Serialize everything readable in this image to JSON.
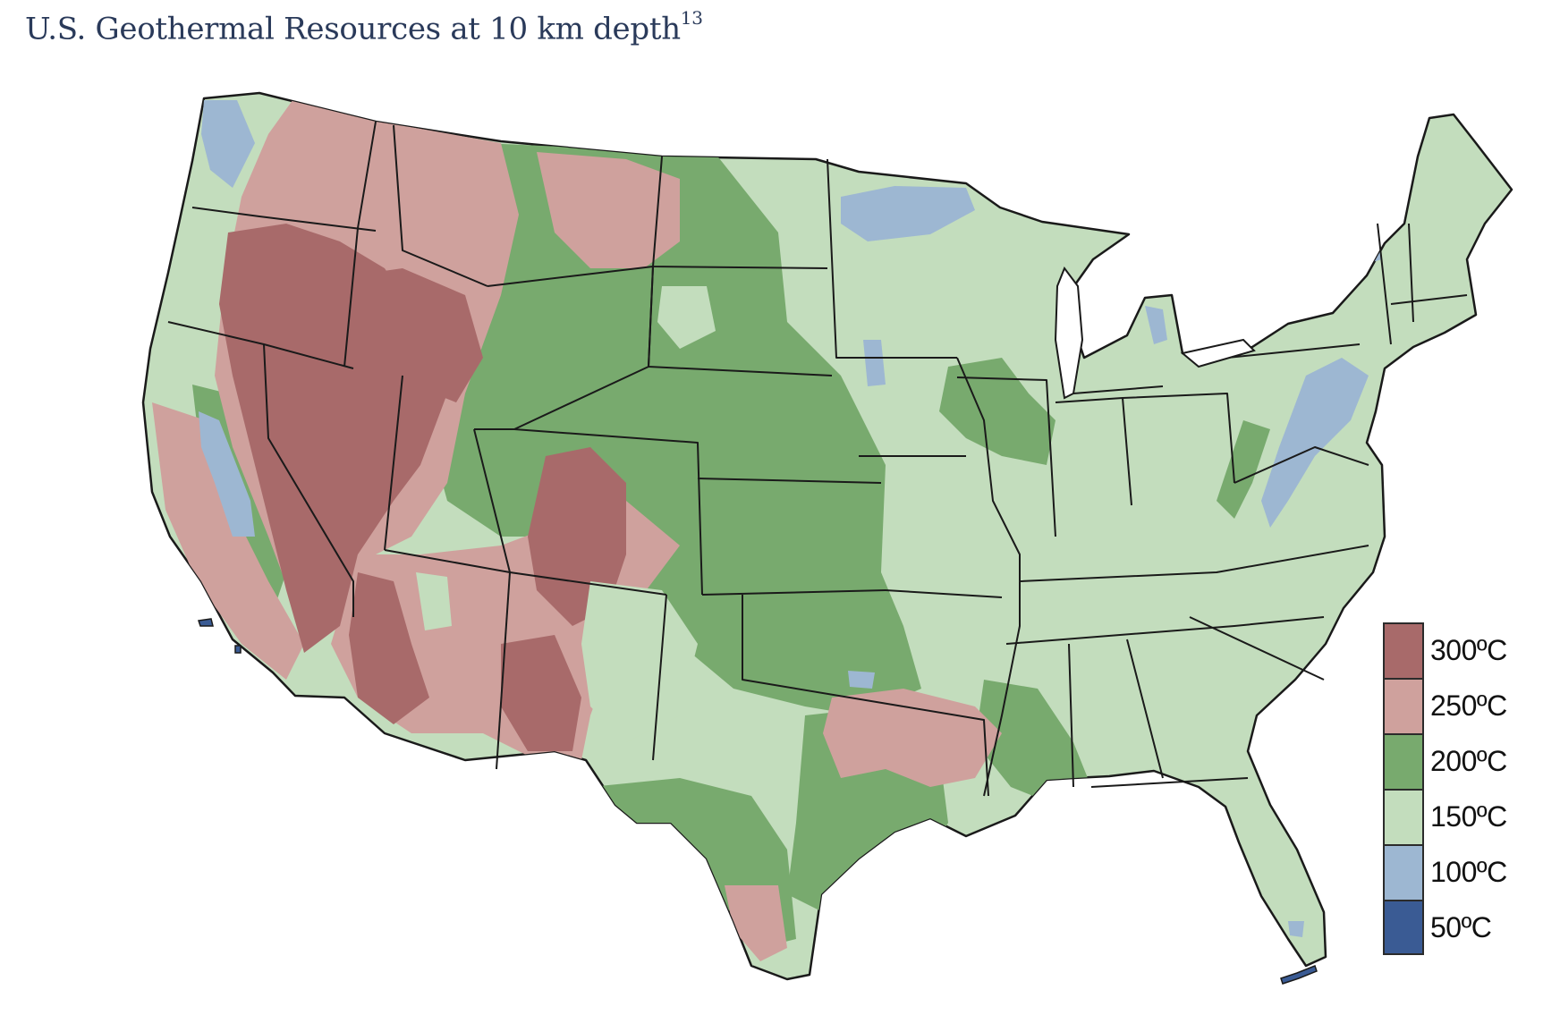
{
  "title": {
    "text": "U.S. Geothermal Resources at 10 km depth",
    "footnote": "13"
  },
  "colors": {
    "t300": "#a86a6a",
    "t250": "#cfa19d",
    "t200": "#78aa6e",
    "t150": "#c3ddbd",
    "t100": "#9db7d2",
    "t50": "#3a5b94",
    "outline": "#1a1a1a"
  },
  "legend": [
    {
      "label": "300ºC",
      "color": "#a86a6a"
    },
    {
      "label": "250ºC",
      "color": "#cfa19d"
    },
    {
      "label": "200ºC",
      "color": "#78aa6e"
    },
    {
      "label": "150ºC",
      "color": "#c3ddbd"
    },
    {
      "label": "100ºC",
      "color": "#9db7d2"
    },
    {
      "label": "50ºC",
      "color": "#3a5b94"
    }
  ]
}
